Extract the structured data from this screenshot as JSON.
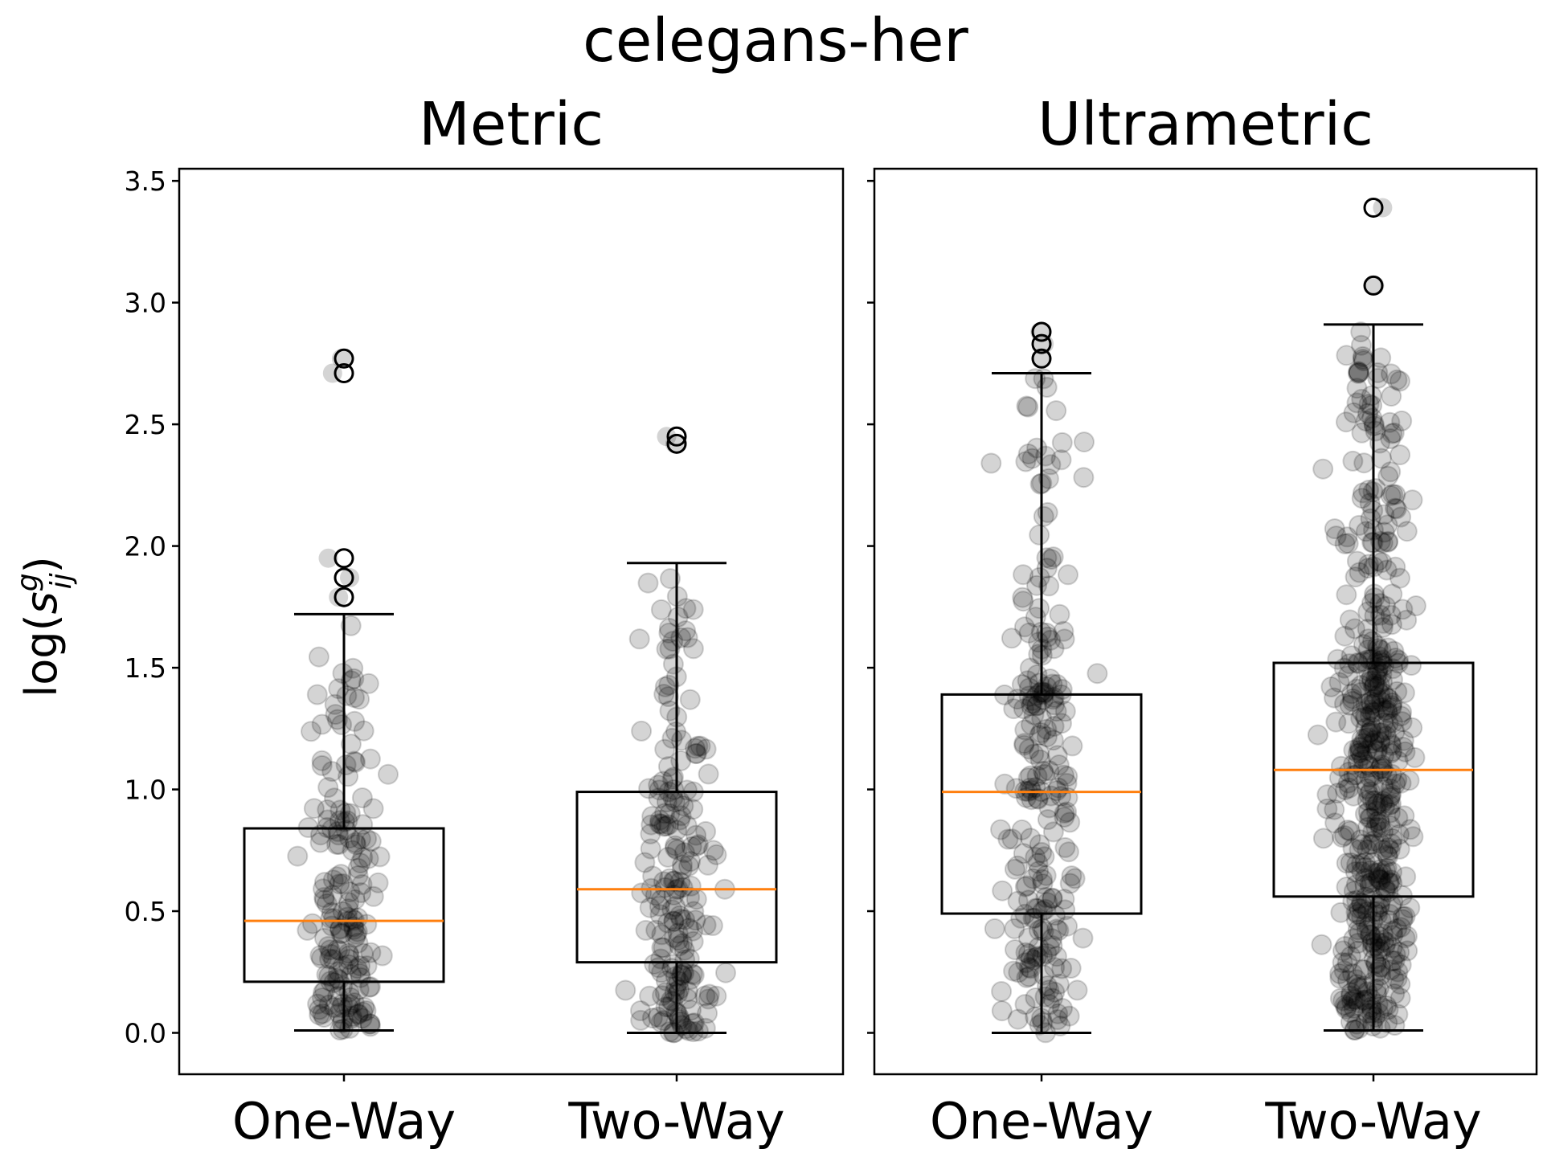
{
  "figure": {
    "title": "celegans-her",
    "ylabel": "log(s_ij^g)",
    "ylabel_parts": {
      "prefix": "log(",
      "base": "s",
      "sup": "g",
      "sub": "ij",
      "suffix": ")"
    }
  },
  "chart_data": [
    {
      "type": "box",
      "title": "Metric",
      "categories": [
        "One-Way",
        "Two-Way"
      ],
      "ylim": [
        -0.17,
        3.55
      ],
      "yticks": [
        0.0,
        0.5,
        1.0,
        1.5,
        2.0,
        2.5,
        3.0,
        3.5
      ],
      "ytick_labels": [
        "0.0",
        "0.5",
        "1.0",
        "1.5",
        "2.0",
        "2.5",
        "3.0",
        "3.5"
      ],
      "boxes": [
        {
          "category": "One-Way",
          "whisker_low": 0.01,
          "q1": 0.21,
          "median": 0.46,
          "q3": 0.84,
          "whisker_high": 1.72,
          "outliers": [
            1.79,
            1.87,
            1.95,
            2.71,
            2.77
          ]
        },
        {
          "category": "Two-Way",
          "whisker_low": 0.0,
          "q1": 0.29,
          "median": 0.59,
          "q3": 0.99,
          "whisker_high": 1.93,
          "outliers": [
            2.42,
            2.45
          ]
        }
      ],
      "jitter_points": [
        {
          "category": "One-Way",
          "count": 180
        },
        {
          "category": "Two-Way",
          "count": 200
        }
      ],
      "grid": false
    },
    {
      "type": "box",
      "title": "Ultrametric",
      "categories": [
        "One-Way",
        "Two-Way"
      ],
      "ylim": [
        -0.17,
        3.55
      ],
      "yticks": [
        0.0,
        0.5,
        1.0,
        1.5,
        2.0,
        2.5,
        3.0,
        3.5
      ],
      "boxes": [
        {
          "category": "One-Way",
          "whisker_low": 0.0,
          "q1": 0.49,
          "median": 0.99,
          "q3": 1.39,
          "whisker_high": 2.71,
          "outliers": [
            2.77,
            2.83,
            2.88
          ]
        },
        {
          "category": "Two-Way",
          "whisker_low": 0.01,
          "q1": 0.56,
          "median": 1.08,
          "q3": 1.52,
          "whisker_high": 2.91,
          "outliers": [
            3.07,
            3.39
          ]
        }
      ],
      "jitter_points": [
        {
          "category": "One-Way",
          "count": 240
        },
        {
          "category": "Two-Way",
          "count": 520
        }
      ],
      "grid": false
    }
  ],
  "colors": {
    "median": "#ff7f0e",
    "box": "#000000",
    "points": "#000000"
  }
}
